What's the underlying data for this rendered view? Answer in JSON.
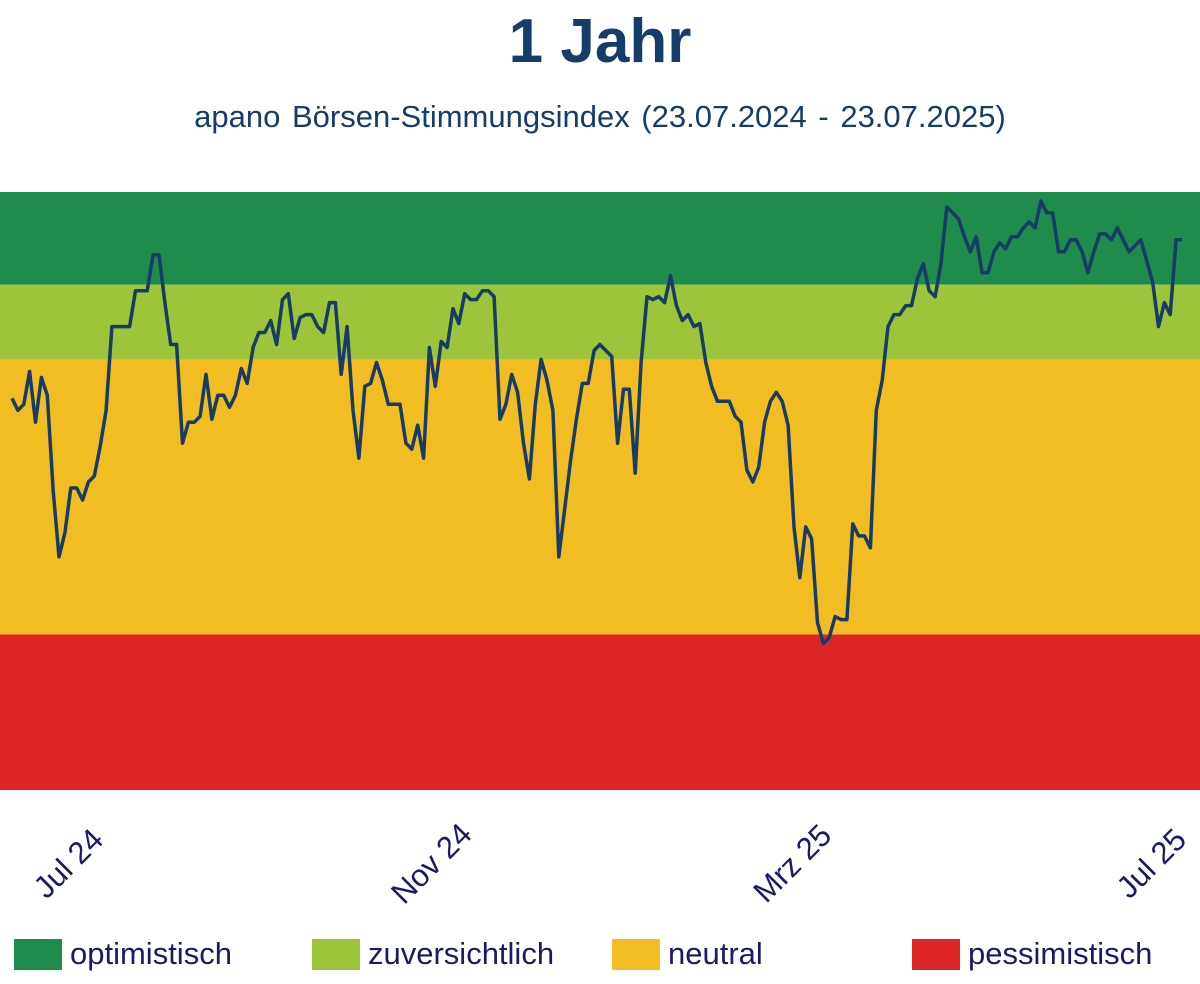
{
  "title": "1 Jahr",
  "subtitle": "apano Börsen-Stimmungsindex (23.07.2024 - 23.07.2025)",
  "colors": {
    "title": "#143d6b",
    "axis_text": "#1a1a66",
    "line": "#173c66",
    "optimistisch": "#1f8b4c",
    "zuversichtlich": "#9dc43b",
    "neutral": "#f2bd22",
    "pessimistisch": "#dc2626"
  },
  "legend": [
    {
      "label": "optimistisch",
      "color_key": "optimistisch"
    },
    {
      "label": "zuversichtlich",
      "color_key": "zuversichtlich"
    },
    {
      "label": "neutral",
      "color_key": "neutral"
    },
    {
      "label": "pessimistisch",
      "color_key": "pessimistisch"
    }
  ],
  "chart_data": {
    "type": "line",
    "title": "1 Jahr",
    "subtitle": "apano Börsen-Stimmungsindex (23.07.2024 - 23.07.2025)",
    "xlabel": "",
    "ylabel": "",
    "x_ticks": [
      "Jul 24",
      "Nov 24",
      "Mrz 25",
      "Jul 25"
    ],
    "x_tick_positions": [
      20,
      150,
      280,
      410
    ],
    "xlim": [
      0,
      420
    ],
    "ylim": [
      0,
      100
    ],
    "grid": false,
    "legend_position": "bottom",
    "bands": [
      {
        "label": "optimistisch",
        "from": 84.5,
        "to": 100
      },
      {
        "label": "zuversichtlich",
        "from": 72,
        "to": 84.5
      },
      {
        "label": "neutral",
        "from": 26,
        "to": 72
      },
      {
        "label": "pessimistisch",
        "from": 0,
        "to": 26
      }
    ],
    "series": [
      {
        "values": [
          [
            0,
            65.5
          ],
          [
            2,
            63.5
          ],
          [
            4,
            64.5
          ],
          [
            6,
            70
          ],
          [
            8,
            61.5
          ],
          [
            10,
            69
          ],
          [
            12,
            66
          ],
          [
            14,
            50
          ],
          [
            16,
            39
          ],
          [
            18,
            43
          ],
          [
            20,
            50.5
          ],
          [
            22,
            50.5
          ],
          [
            24,
            48.5
          ],
          [
            26,
            51.5
          ],
          [
            28,
            52.5
          ],
          [
            30,
            57.5
          ],
          [
            32,
            63.5
          ],
          [
            34,
            77.5
          ],
          [
            36,
            77.5
          ],
          [
            38,
            77.5
          ],
          [
            40,
            77.5
          ],
          [
            42,
            83.5
          ],
          [
            44,
            83.5
          ],
          [
            46,
            83.5
          ],
          [
            48,
            89.5
          ],
          [
            50,
            89.5
          ],
          [
            52,
            81.5
          ],
          [
            54,
            74.5
          ],
          [
            56,
            74.5
          ],
          [
            58,
            58
          ],
          [
            60,
            61.5
          ],
          [
            62,
            61.5
          ],
          [
            64,
            62.5
          ],
          [
            66,
            69.5
          ],
          [
            68,
            62
          ],
          [
            70,
            66
          ],
          [
            72,
            66
          ],
          [
            74,
            64
          ],
          [
            76,
            66
          ],
          [
            78,
            70.5
          ],
          [
            80,
            68
          ],
          [
            82,
            74
          ],
          [
            84,
            76.5
          ],
          [
            86,
            76.5
          ],
          [
            88,
            78.5
          ],
          [
            90,
            74.5
          ],
          [
            92,
            82
          ],
          [
            94,
            83
          ],
          [
            96,
            75.5
          ],
          [
            98,
            79
          ],
          [
            100,
            79.5
          ],
          [
            102,
            79.5
          ],
          [
            104,
            77.5
          ],
          [
            106,
            76.5
          ],
          [
            108,
            81.5
          ],
          [
            110,
            81.5
          ],
          [
            112,
            69.5
          ],
          [
            114,
            77.5
          ],
          [
            116,
            63.5
          ],
          [
            118,
            55.5
          ],
          [
            120,
            67.5
          ],
          [
            122,
            68
          ],
          [
            124,
            71.5
          ],
          [
            126,
            68.5
          ],
          [
            128,
            64.5
          ],
          [
            130,
            64.5
          ],
          [
            132,
            64.5
          ],
          [
            134,
            58
          ],
          [
            136,
            57
          ],
          [
            138,
            61
          ],
          [
            140,
            55.5
          ],
          [
            142,
            74
          ],
          [
            144,
            67.5
          ],
          [
            146,
            75
          ],
          [
            148,
            74
          ],
          [
            150,
            80.5
          ],
          [
            152,
            78
          ],
          [
            154,
            83
          ],
          [
            156,
            82
          ],
          [
            158,
            82
          ],
          [
            160,
            83.5
          ],
          [
            162,
            83.5
          ],
          [
            164,
            82.5
          ],
          [
            166,
            62
          ],
          [
            168,
            64.5
          ],
          [
            170,
            69.5
          ],
          [
            172,
            66.5
          ],
          [
            174,
            58
          ],
          [
            176,
            52
          ],
          [
            178,
            64.5
          ],
          [
            180,
            72
          ],
          [
            182,
            68.5
          ],
          [
            184,
            63.5
          ],
          [
            186,
            39
          ],
          [
            188,
            47
          ],
          [
            190,
            55
          ],
          [
            192,
            62
          ],
          [
            194,
            68
          ],
          [
            196,
            68
          ],
          [
            198,
            73.5
          ],
          [
            200,
            74.5
          ],
          [
            202,
            73.5
          ],
          [
            204,
            72.5
          ],
          [
            206,
            58
          ],
          [
            208,
            67
          ],
          [
            210,
            67
          ],
          [
            212,
            53
          ],
          [
            214,
            71.5
          ],
          [
            216,
            82.5
          ],
          [
            218,
            82
          ],
          [
            220,
            82.5
          ],
          [
            222,
            81.5
          ],
          [
            224,
            86
          ],
          [
            226,
            81
          ],
          [
            228,
            78.5
          ],
          [
            230,
            79.5
          ],
          [
            232,
            77.5
          ],
          [
            234,
            78
          ],
          [
            236,
            71.5
          ],
          [
            238,
            67.5
          ],
          [
            240,
            65
          ],
          [
            242,
            65
          ],
          [
            244,
            65
          ],
          [
            246,
            62.5
          ],
          [
            248,
            61.5
          ],
          [
            250,
            53.5
          ],
          [
            252,
            51.5
          ],
          [
            254,
            54
          ],
          [
            256,
            61.5
          ],
          [
            258,
            65
          ],
          [
            260,
            66.5
          ],
          [
            262,
            65
          ],
          [
            264,
            61
          ],
          [
            266,
            44
          ],
          [
            268,
            35.5
          ],
          [
            270,
            44
          ],
          [
            272,
            42
          ],
          [
            274,
            28
          ],
          [
            276,
            24.5
          ],
          [
            278,
            25.5
          ],
          [
            280,
            29
          ],
          [
            282,
            28.5
          ],
          [
            284,
            28.5
          ],
          [
            286,
            44.5
          ],
          [
            288,
            42.5
          ],
          [
            290,
            42.5
          ],
          [
            292,
            40.5
          ],
          [
            294,
            63.5
          ],
          [
            296,
            68.5
          ],
          [
            298,
            77.5
          ],
          [
            300,
            79.5
          ],
          [
            302,
            79.5
          ],
          [
            304,
            81
          ],
          [
            306,
            81
          ],
          [
            308,
            85.5
          ],
          [
            310,
            88
          ],
          [
            312,
            83.5
          ],
          [
            314,
            82.5
          ],
          [
            316,
            88
          ],
          [
            318,
            97.5
          ],
          [
            320,
            96.5
          ],
          [
            322,
            95.5
          ],
          [
            324,
            92.5
          ],
          [
            326,
            90
          ],
          [
            328,
            92.5
          ],
          [
            330,
            86.5
          ],
          [
            332,
            86.5
          ],
          [
            334,
            90
          ],
          [
            336,
            91.5
          ],
          [
            338,
            90.5
          ],
          [
            340,
            92.5
          ],
          [
            342,
            92.5
          ],
          [
            344,
            94
          ],
          [
            346,
            95
          ],
          [
            348,
            94
          ],
          [
            350,
            98.5
          ],
          [
            352,
            96.5
          ],
          [
            354,
            96.5
          ],
          [
            356,
            90
          ],
          [
            358,
            90
          ],
          [
            360,
            92
          ],
          [
            362,
            92
          ],
          [
            364,
            90
          ],
          [
            366,
            86.5
          ],
          [
            368,
            90
          ],
          [
            370,
            93
          ],
          [
            372,
            93
          ],
          [
            374,
            92
          ],
          [
            376,
            94
          ],
          [
            378,
            92
          ],
          [
            380,
            90
          ],
          [
            382,
            91
          ],
          [
            384,
            92
          ],
          [
            386,
            88.5
          ],
          [
            388,
            85
          ],
          [
            390,
            77.5
          ],
          [
            392,
            81.5
          ],
          [
            394,
            79.5
          ],
          [
            396,
            92
          ],
          [
            398,
            92
          ]
        ]
      }
    ]
  }
}
